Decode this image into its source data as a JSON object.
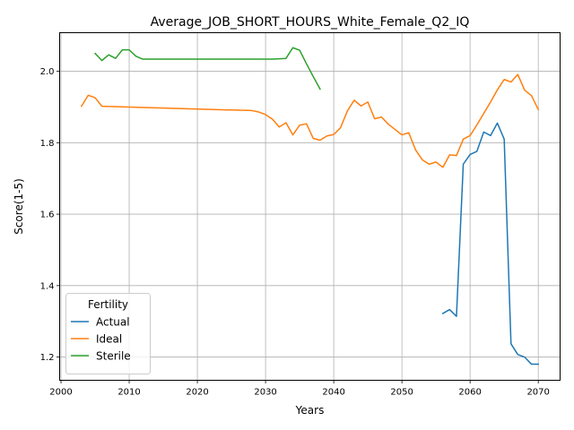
{
  "chart_data": {
    "type": "line",
    "title": "Average_JOB_SHORT_HOURS_White_Female_Q2_IQ",
    "xlabel": "Years",
    "ylabel": "Score(1-5)",
    "xlim": [
      1999.8,
      2073.2
    ],
    "ylim": [
      1.135,
      2.108
    ],
    "xticks": [
      2000,
      2010,
      2020,
      2030,
      2040,
      2050,
      2060,
      2070
    ],
    "yticks": [
      1.2,
      1.4,
      1.6,
      1.8,
      2.0
    ],
    "ytick_labels": [
      "1.2",
      "1.4",
      "1.6",
      "1.8",
      "2.0"
    ],
    "grid": true,
    "legend": {
      "title": "Fertility",
      "position": "lower-left"
    },
    "series": [
      {
        "name": "Actual",
        "color": "#1f77b4",
        "x": [
          2056,
          2057,
          2058,
          2059,
          2060,
          2061,
          2062,
          2063,
          2064,
          2065,
          2066,
          2067,
          2068,
          2069,
          2070
        ],
        "y": [
          1.322,
          1.333,
          1.314,
          1.74,
          1.767,
          1.776,
          1.83,
          1.82,
          1.855,
          1.81,
          1.237,
          1.207,
          1.2,
          1.18,
          1.18
        ]
      },
      {
        "name": "Ideal",
        "color": "#ff7f0e",
        "x": [
          2003,
          2004,
          2005,
          2006,
          2028,
          2029,
          2030,
          2031,
          2032,
          2033,
          2034,
          2035,
          2036,
          2037,
          2038,
          2039,
          2040,
          2041,
          2042,
          2043,
          2044,
          2045,
          2046,
          2047,
          2048,
          2049,
          2050,
          2051,
          2052,
          2053,
          2054,
          2055,
          2056,
          2057,
          2058,
          2059,
          2060,
          2061,
          2062,
          2063,
          2064,
          2065,
          2066,
          2067,
          2068,
          2069,
          2070
        ],
        "y": [
          1.902,
          1.933,
          1.926,
          1.902,
          1.89,
          1.886,
          1.879,
          1.866,
          1.844,
          1.856,
          1.822,
          1.849,
          1.853,
          1.812,
          1.807,
          1.819,
          1.823,
          1.842,
          1.889,
          1.919,
          1.903,
          1.914,
          1.867,
          1.872,
          1.852,
          1.837,
          1.822,
          1.828,
          1.78,
          1.752,
          1.74,
          1.746,
          1.731,
          1.766,
          1.764,
          1.81,
          1.82,
          1.85,
          1.882,
          1.914,
          1.948,
          1.977,
          1.97,
          1.991,
          1.947,
          1.932,
          1.893
        ]
      },
      {
        "name": "Sterile",
        "color": "#2ca02c",
        "x": [
          2005,
          2006,
          2007,
          2008,
          2009,
          2010,
          2011,
          2012,
          2030,
          2031,
          2032,
          2033,
          2034,
          2035,
          2036,
          2037,
          2038
        ],
        "y": [
          2.05,
          2.03,
          2.046,
          2.036,
          2.06,
          2.06,
          2.042,
          2.034,
          2.034,
          2.034,
          2.035,
          2.036,
          2.066,
          2.059,
          2.021,
          1.985,
          1.95
        ]
      }
    ]
  }
}
